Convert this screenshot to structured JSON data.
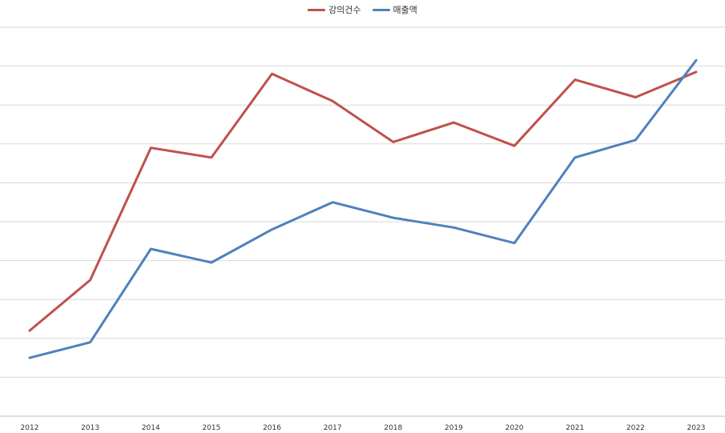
{
  "chart_data": {
    "type": "line",
    "title": "",
    "xlabel": "",
    "ylabel": "",
    "categories": [
      "2012",
      "2013",
      "2014",
      "2015",
      "2016",
      "2017",
      "2018",
      "2019",
      "2020",
      "2021",
      "2022",
      "2023"
    ],
    "series": [
      {
        "name": "강의건수",
        "color": "#c0504d",
        "values": [
          2.2,
          3.5,
          6.9,
          6.65,
          8.8,
          8.1,
          7.05,
          7.55,
          6.95,
          8.65,
          8.2,
          8.85
        ]
      },
      {
        "name": "매출액",
        "color": "#4f81bd",
        "values": [
          1.5,
          1.9,
          4.3,
          3.95,
          4.8,
          5.5,
          5.1,
          4.85,
          4.45,
          6.65,
          7.1,
          9.15
        ]
      }
    ],
    "ylim": [
      0,
      10
    ],
    "y_gridlines": 10,
    "y_tick_labels_visible": false,
    "grid": true,
    "legend_position": "top-center"
  }
}
